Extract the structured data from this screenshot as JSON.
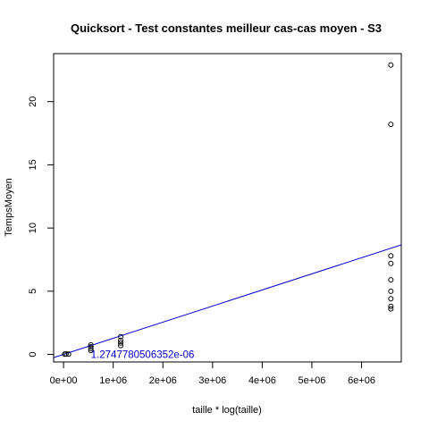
{
  "chart_data": {
    "type": "scatter",
    "title": "Quicksort - Test constantes meilleur cas-cas moyen - S3",
    "xlabel": "taille * log(taille)",
    "ylabel": "TempsMoyen",
    "xlim": [
      -200000,
      6800000
    ],
    "ylim": [
      -0.6,
      23.8
    ],
    "x_ticks": [
      0,
      1000000,
      2000000,
      3000000,
      4000000,
      5000000,
      6000000
    ],
    "x_tick_labels": [
      "0e+00",
      "1e+06",
      "2e+06",
      "3e+06",
      "4e+06",
      "5e+06",
      "6e+06"
    ],
    "y_ticks": [
      0,
      5,
      10,
      15,
      20
    ],
    "y_tick_labels": [
      "0",
      "5",
      "10",
      "15",
      "20"
    ],
    "grid": false,
    "series": [
      {
        "marker": "open-circle",
        "color": "#000000",
        "points": [
          {
            "x": 20000,
            "y": 0.02
          },
          {
            "x": 50000,
            "y": 0.04
          },
          {
            "x": 100000,
            "y": 0.03
          },
          {
            "x": 550000,
            "y": 0.3
          },
          {
            "x": 550000,
            "y": 0.45
          },
          {
            "x": 550000,
            "y": 0.6
          },
          {
            "x": 550000,
            "y": 0.75
          },
          {
            "x": 1150000,
            "y": 0.7
          },
          {
            "x": 1150000,
            "y": 0.9
          },
          {
            "x": 1150000,
            "y": 1.1
          },
          {
            "x": 1150000,
            "y": 1.4
          },
          {
            "x": 6590000,
            "y": 3.6
          },
          {
            "x": 6590000,
            "y": 3.8
          },
          {
            "x": 6590000,
            "y": 4.4
          },
          {
            "x": 6590000,
            "y": 5.0
          },
          {
            "x": 6590000,
            "y": 5.9
          },
          {
            "x": 6590000,
            "y": 7.2
          },
          {
            "x": 6590000,
            "y": 7.8
          },
          {
            "x": 6590000,
            "y": 18.2
          },
          {
            "x": 6590000,
            "y": 22.9
          }
        ]
      }
    ],
    "regression_line": {
      "intercept": 0,
      "slope": 1.2747780506352e-06,
      "color": "#0000cc"
    },
    "annotations": [
      {
        "text": "1.2747780506352e-06",
        "x": 550000,
        "y": 0,
        "color": "#0000cc"
      }
    ]
  }
}
